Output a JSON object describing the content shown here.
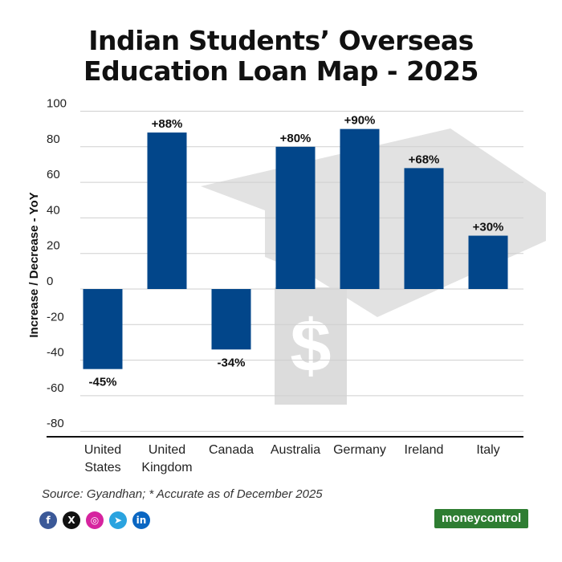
{
  "header": {
    "title_line1": "Indian Students’ Overseas",
    "title_line2": "Education Loan Map - 2025"
  },
  "chart_data": {
    "type": "bar",
    "title": "Indian Students’ Overseas Education Loan Map - 2025",
    "ylabel": "Increase / Decrease - YoY",
    "xlabel": "",
    "ylim": [
      -80,
      100
    ],
    "yticks": [
      100,
      80,
      60,
      40,
      20,
      0,
      -20,
      -40,
      -60,
      -80
    ],
    "grid": true,
    "categories": [
      [
        "United",
        "States"
      ],
      [
        "United",
        "Kingdom"
      ],
      [
        "Canada"
      ],
      [
        "Australia"
      ],
      [
        "Germany"
      ],
      [
        "Ireland"
      ],
      [
        "Italy"
      ]
    ],
    "values": [
      -45,
      88,
      -34,
      80,
      90,
      68,
      30
    ],
    "data_labels": [
      "-45%",
      "+88%",
      "-34%",
      "+80%",
      "+90%",
      "+68%",
      "+30%"
    ],
    "bar_color": "#02468a"
  },
  "footer": {
    "source": "Source: Gyandhan; * Accurate as of December 2025",
    "brand": "moneycontrol",
    "social": [
      {
        "name": "facebook-icon",
        "glyph": "f",
        "color": "#3b5998"
      },
      {
        "name": "x-icon",
        "glyph": "X",
        "color": "#111111"
      },
      {
        "name": "instagram-icon",
        "glyph": "◎",
        "color": "#d6249f"
      },
      {
        "name": "telegram-icon",
        "glyph": "➤",
        "color": "#2aa3df"
      },
      {
        "name": "linkedin-icon",
        "glyph": "in",
        "color": "#0a66c2"
      }
    ]
  }
}
